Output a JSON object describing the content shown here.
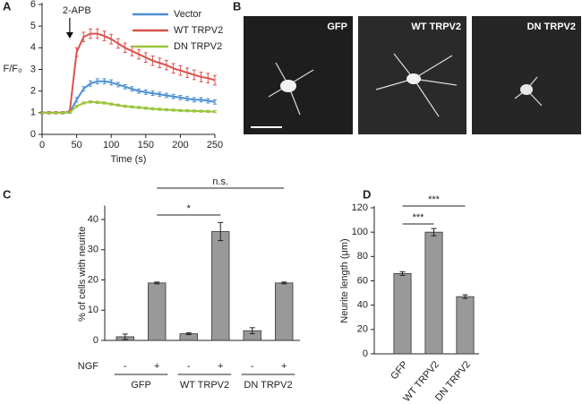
{
  "chart_data": [
    {
      "type": "line",
      "panel": "A",
      "ylabel": "F/F₀",
      "xlabel": "Time (s)",
      "annotation": "2-APB",
      "annotation_x": 40,
      "x": [
        0,
        10,
        20,
        30,
        40,
        50,
        60,
        70,
        80,
        90,
        100,
        110,
        120,
        130,
        140,
        150,
        160,
        170,
        180,
        190,
        200,
        210,
        220,
        230,
        240,
        250
      ],
      "xlim": [
        0,
        250
      ],
      "xticks": [
        0,
        50,
        100,
        150,
        200,
        250
      ],
      "ylim": [
        0,
        6
      ],
      "yticks": [
        0,
        1,
        2,
        3,
        4,
        5,
        6
      ],
      "legend": "upper right",
      "series": [
        {
          "name": "Vector",
          "color": "#4a8fd4",
          "values": [
            1,
            1,
            1,
            1,
            1.02,
            1.6,
            2.1,
            2.35,
            2.45,
            2.45,
            2.4,
            2.3,
            2.2,
            2.1,
            2.0,
            1.95,
            1.9,
            1.85,
            1.8,
            1.75,
            1.7,
            1.65,
            1.6,
            1.6,
            1.55,
            1.5
          ],
          "errors": [
            0.05,
            0.05,
            0.05,
            0.05,
            0.05,
            0.1,
            0.1,
            0.12,
            0.12,
            0.12,
            0.12,
            0.1,
            0.1,
            0.1,
            0.1,
            0.1,
            0.1,
            0.1,
            0.1,
            0.1,
            0.1,
            0.1,
            0.1,
            0.1,
            0.1,
            0.1
          ]
        },
        {
          "name": "WT TRPV2",
          "color": "#d9534f",
          "values": [
            1,
            1,
            1,
            1,
            1.05,
            3.8,
            4.5,
            4.65,
            4.65,
            4.55,
            4.4,
            4.2,
            4.0,
            3.85,
            3.7,
            3.55,
            3.4,
            3.3,
            3.2,
            3.05,
            2.95,
            2.85,
            2.75,
            2.65,
            2.6,
            2.5
          ],
          "errors": [
            0.05,
            0.05,
            0.05,
            0.05,
            0.05,
            0.2,
            0.22,
            0.22,
            0.22,
            0.22,
            0.22,
            0.22,
            0.22,
            0.22,
            0.22,
            0.22,
            0.22,
            0.22,
            0.22,
            0.22,
            0.22,
            0.22,
            0.22,
            0.22,
            0.22,
            0.22
          ]
        },
        {
          "name": "DN TRPV2",
          "color": "#9bc53d",
          "values": [
            1,
            1,
            1,
            1,
            1.02,
            1.3,
            1.45,
            1.5,
            1.48,
            1.45,
            1.4,
            1.35,
            1.3,
            1.27,
            1.24,
            1.21,
            1.18,
            1.16,
            1.14,
            1.12,
            1.1,
            1.09,
            1.08,
            1.07,
            1.06,
            1.05
          ],
          "errors": [
            0.03,
            0.03,
            0.03,
            0.03,
            0.03,
            0.05,
            0.05,
            0.05,
            0.05,
            0.05,
            0.05,
            0.05,
            0.05,
            0.05,
            0.05,
            0.05,
            0.05,
            0.05,
            0.05,
            0.05,
            0.05,
            0.05,
            0.05,
            0.05,
            0.05,
            0.05
          ]
        }
      ]
    },
    {
      "type": "bar",
      "panel": "C",
      "ylabel": "% of cells with neurite",
      "factor_label": "NGF",
      "categories": [
        "-",
        "+",
        "-",
        "+",
        "-",
        "+"
      ],
      "group_labels": [
        "GFP",
        "WT TRPV2",
        "DN TRPV2"
      ],
      "values": [
        1.2,
        19,
        2.2,
        36,
        3.2,
        19
      ],
      "errors": [
        0.9,
        0.3,
        0.3,
        3,
        1,
        0.3
      ],
      "color": "#999999",
      "ylim": [
        0,
        44
      ],
      "yticks": [
        0,
        10,
        20,
        30,
        40
      ],
      "significance": [
        "*",
        "n.s."
      ]
    },
    {
      "type": "bar",
      "panel": "D",
      "ylabel": "Neurite length (μm)",
      "categories": [
        "GFP",
        "WT TRPV2",
        "DN TRPV2"
      ],
      "values": [
        66,
        100,
        47
      ],
      "errors": [
        1.5,
        3,
        1.5
      ],
      "color": "#999999",
      "ylim": [
        0,
        120
      ],
      "yticks": [
        0,
        20,
        40,
        60,
        80,
        100,
        120
      ],
      "significance": [
        "***",
        "***"
      ]
    }
  ],
  "micrographs": {
    "panel": "B",
    "captions": [
      "GFP",
      "WT TRPV2",
      "DN TRPV2"
    ]
  }
}
